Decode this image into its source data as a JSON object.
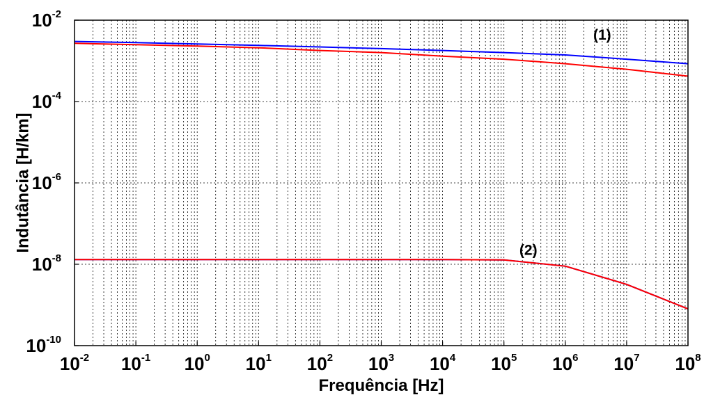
{
  "chart_data": {
    "type": "line",
    "xlabel": "Frequência [Hz]",
    "ylabel": "Indutância [H/km]",
    "xscale": "log",
    "yscale": "log",
    "xlim": [
      0.01,
      100000000
    ],
    "ylim": [
      1e-10,
      0.01
    ],
    "grid": true,
    "x_ticks": [
      {
        "base": "10",
        "exp": "-2",
        "value": 0.01
      },
      {
        "base": "10",
        "exp": "-1",
        "value": 0.1
      },
      {
        "base": "10",
        "exp": "0",
        "value": 1
      },
      {
        "base": "10",
        "exp": "1",
        "value": 10
      },
      {
        "base": "10",
        "exp": "2",
        "value": 100
      },
      {
        "base": "10",
        "exp": "3",
        "value": 1000
      },
      {
        "base": "10",
        "exp": "4",
        "value": 10000
      },
      {
        "base": "10",
        "exp": "5",
        "value": 100000
      },
      {
        "base": "10",
        "exp": "6",
        "value": 1000000
      },
      {
        "base": "10",
        "exp": "7",
        "value": 10000000
      },
      {
        "base": "10",
        "exp": "8",
        "value": 100000000
      }
    ],
    "y_ticks": [
      {
        "base": "10",
        "exp": "-10",
        "value": 1e-10
      },
      {
        "base": "10",
        "exp": "-8",
        "value": 1e-08
      },
      {
        "base": "10",
        "exp": "-6",
        "value": 1e-06
      },
      {
        "base": "10",
        "exp": "-4",
        "value": 0.0001
      },
      {
        "base": "10",
        "exp": "-2",
        "value": 0.01
      }
    ],
    "x": [
      0.01,
      0.1,
      1,
      10,
      100,
      1000,
      10000,
      100000,
      1000000,
      10000000,
      100000000
    ],
    "series": [
      {
        "color": "#0000ff",
        "values": [
          0.003,
          0.0028,
          0.0026,
          0.0024,
          0.0022,
          0.002,
          0.0018,
          0.0016,
          0.0014,
          0.0011,
          0.00085
        ]
      },
      {
        "color": "#ff0000",
        "values": [
          0.0027,
          0.0025,
          0.0023,
          0.0021,
          0.0018,
          0.0016,
          0.0013,
          0.0011,
          0.00085,
          0.00062,
          0.00042
        ]
      },
      {
        "color": "#0000ff",
        "values": [
          1.3e-08,
          1.3e-08,
          1.3e-08,
          1.3e-08,
          1.3e-08,
          1.3e-08,
          1.3e-08,
          1.28e-08,
          9e-09,
          3.2e-09,
          8e-10
        ]
      },
      {
        "color": "#ff0000",
        "values": [
          1.3e-08,
          1.3e-08,
          1.3e-08,
          1.3e-08,
          1.3e-08,
          1.3e-08,
          1.3e-08,
          1.28e-08,
          9e-09,
          3.2e-09,
          8e-10
        ]
      }
    ],
    "annotations": [
      {
        "text": "(1)",
        "x": 4000000,
        "y": 0.0033
      },
      {
        "text": "(2)",
        "x": 250000,
        "y": 1.7e-08
      }
    ]
  }
}
